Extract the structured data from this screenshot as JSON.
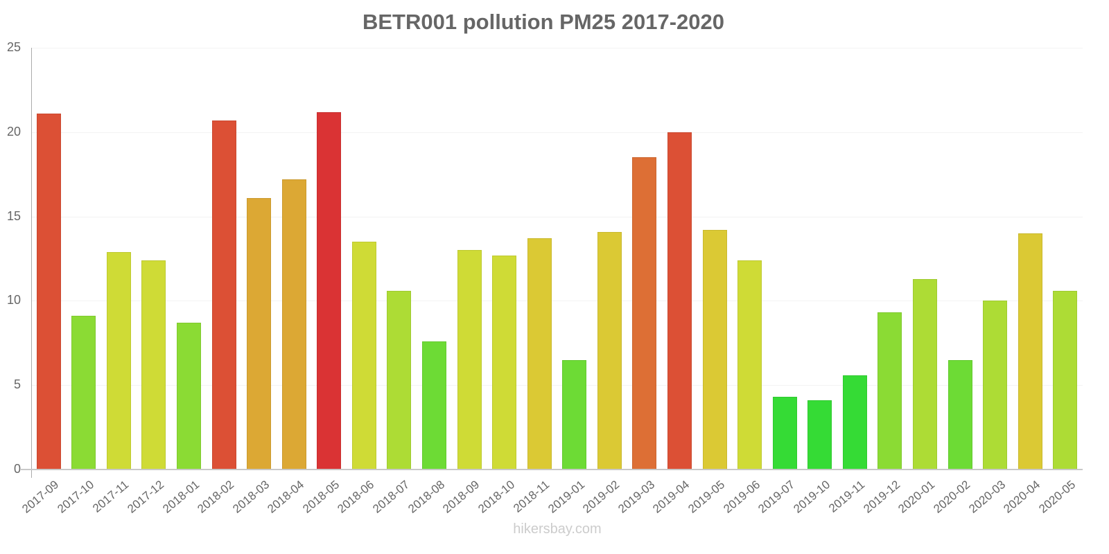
{
  "chart_data": {
    "type": "bar",
    "title": "BETR001 pollution PM25 2017-2020",
    "xlabel": "",
    "ylabel": "",
    "ylim": [
      0,
      25
    ],
    "yticks": [
      0,
      5,
      10,
      15,
      20,
      25
    ],
    "grid": true,
    "legend": null,
    "categories": [
      "2017-09",
      "2017-10",
      "2017-11",
      "2017-12",
      "2018-01",
      "2018-02",
      "2018-03",
      "2018-04",
      "2018-05",
      "2018-06",
      "2018-07",
      "2018-08",
      "2018-09",
      "2018-10",
      "2018-11",
      "2019-01",
      "2019-02",
      "2019-03",
      "2019-04",
      "2019-05",
      "2019-06",
      "2019-07",
      "2019-10",
      "2019-11",
      "2019-12",
      "2020-01",
      "2020-02",
      "2020-03",
      "2020-04",
      "2020-05"
    ],
    "values": [
      21.1,
      9.1,
      12.9,
      12.4,
      8.7,
      20.7,
      16.1,
      17.2,
      21.2,
      13.5,
      10.6,
      7.6,
      13.0,
      12.7,
      13.7,
      6.5,
      14.1,
      18.5,
      20.0,
      14.2,
      12.4,
      4.3,
      4.1,
      5.6,
      9.3,
      11.3,
      6.5,
      10.0,
      14.0,
      10.6
    ],
    "colors": [
      "#dc5035",
      "#8bdb34",
      "#cfdb36",
      "#cfdb36",
      "#8bdb34",
      "#dc5035",
      "#dca834",
      "#dca834",
      "#da3334",
      "#cfdb36",
      "#addc35",
      "#6ddb35",
      "#cfdb36",
      "#cfdb36",
      "#dbc934",
      "#6ddb35",
      "#dbc934",
      "#dd6f35",
      "#dc5035",
      "#dbc934",
      "#cfdb36",
      "#35db35",
      "#35db35",
      "#35db35",
      "#8bdb34",
      "#addc35",
      "#6ddb35",
      "#addc35",
      "#dbc934",
      "#addc35"
    ]
  },
  "watermark": "hikersbay.com"
}
